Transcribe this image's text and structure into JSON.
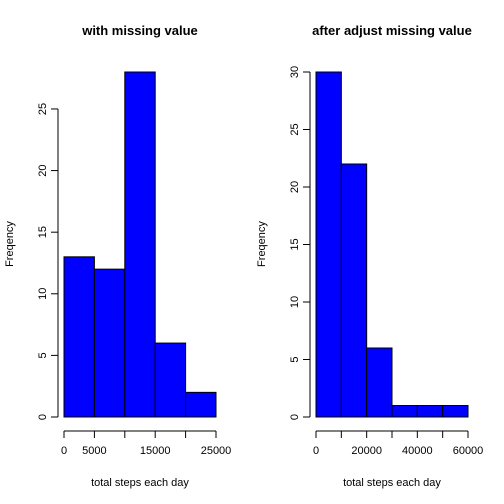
{
  "chart_data": [
    {
      "type": "bar",
      "title": "with missing value",
      "xlabel": "total steps each day",
      "ylabel": "Freqency",
      "bar_color": "#0000ff",
      "bins": [
        [
          0,
          5000
        ],
        [
          5000,
          10000
        ],
        [
          10000,
          15000
        ],
        [
          15000,
          20000
        ],
        [
          20000,
          25000
        ]
      ],
      "values": [
        13,
        12,
        28,
        6,
        2
      ],
      "xlim": [
        0,
        25000
      ],
      "ylim": [
        0,
        28
      ],
      "xticks": [
        0,
        5000,
        10000,
        15000,
        20000,
        25000
      ],
      "xtick_labels": [
        "0",
        "5000",
        "",
        "15000",
        "",
        "25000"
      ],
      "yticks": [
        0,
        5,
        10,
        15,
        20,
        25
      ],
      "ytick_labels": [
        "0",
        "5",
        "10",
        "15",
        "20",
        "25"
      ],
      "grid": false
    },
    {
      "type": "bar",
      "title": "after adjust missing value",
      "xlabel": "total steps each day",
      "ylabel": "Freqency",
      "bar_color": "#0000ff",
      "bins": [
        [
          0,
          10000
        ],
        [
          10000,
          20000
        ],
        [
          20000,
          30000
        ],
        [
          30000,
          40000
        ],
        [
          40000,
          50000
        ],
        [
          50000,
          60000
        ]
      ],
      "values": [
        30,
        22,
        6,
        1,
        1,
        1
      ],
      "xlim": [
        0,
        60000
      ],
      "ylim": [
        0,
        30
      ],
      "xticks": [
        0,
        10000,
        20000,
        30000,
        40000,
        50000,
        60000
      ],
      "xtick_labels": [
        "0",
        "",
        "20000",
        "",
        "40000",
        "",
        "60000"
      ],
      "yticks": [
        0,
        5,
        10,
        15,
        20,
        25,
        30
      ],
      "ytick_labels": [
        "0",
        "5",
        "10",
        "15",
        "20",
        "25",
        "30"
      ],
      "grid": false
    }
  ]
}
